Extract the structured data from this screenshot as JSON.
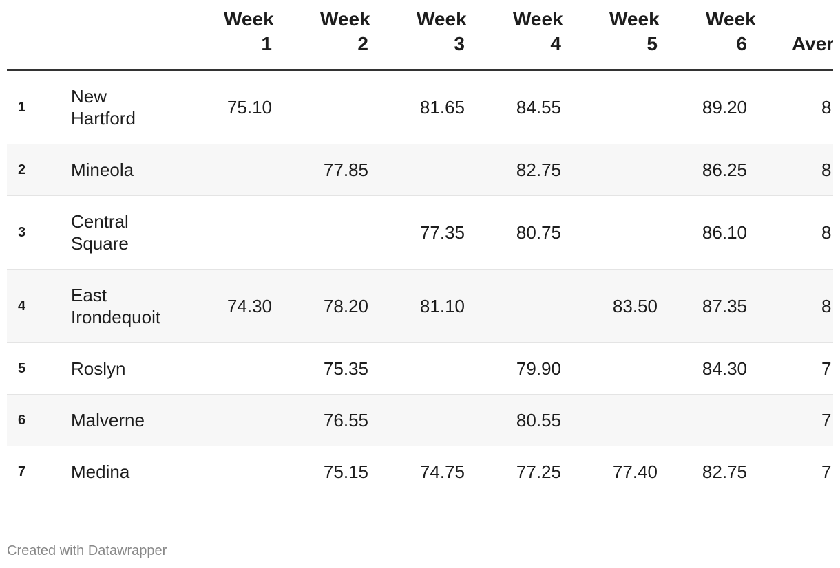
{
  "table": {
    "columns": [
      "Week 1",
      "Week 2",
      "Week 3",
      "Week 4",
      "Week 5",
      "Week 6",
      "Aver"
    ],
    "rows": [
      {
        "rank": 1,
        "name": "New Hartford",
        "cells": [
          "75.10",
          null,
          "81.65",
          "84.55",
          null,
          "89.20",
          "8"
        ]
      },
      {
        "rank": 2,
        "name": "Mineola",
        "cells": [
          null,
          "77.85",
          null,
          "82.75",
          null,
          "86.25",
          "8"
        ]
      },
      {
        "rank": 3,
        "name": "Central Square",
        "cells": [
          null,
          null,
          "77.35",
          "80.75",
          null,
          "86.10",
          "8"
        ]
      },
      {
        "rank": 4,
        "name": "East Irondequoit",
        "cells": [
          "74.30",
          "78.20",
          "81.10",
          null,
          "83.50",
          "87.35",
          "8"
        ]
      },
      {
        "rank": 5,
        "name": "Roslyn",
        "cells": [
          null,
          "75.35",
          null,
          "79.90",
          null,
          "84.30",
          "7"
        ]
      },
      {
        "rank": 6,
        "name": "Malverne",
        "cells": [
          null,
          "76.55",
          null,
          "80.55",
          null,
          null,
          "7"
        ]
      },
      {
        "rank": 7,
        "name": "Medina",
        "cells": [
          null,
          "75.15",
          "74.75",
          "77.25",
          "77.40",
          "82.75",
          "7"
        ]
      }
    ]
  },
  "footer": "Created with Datawrapper"
}
